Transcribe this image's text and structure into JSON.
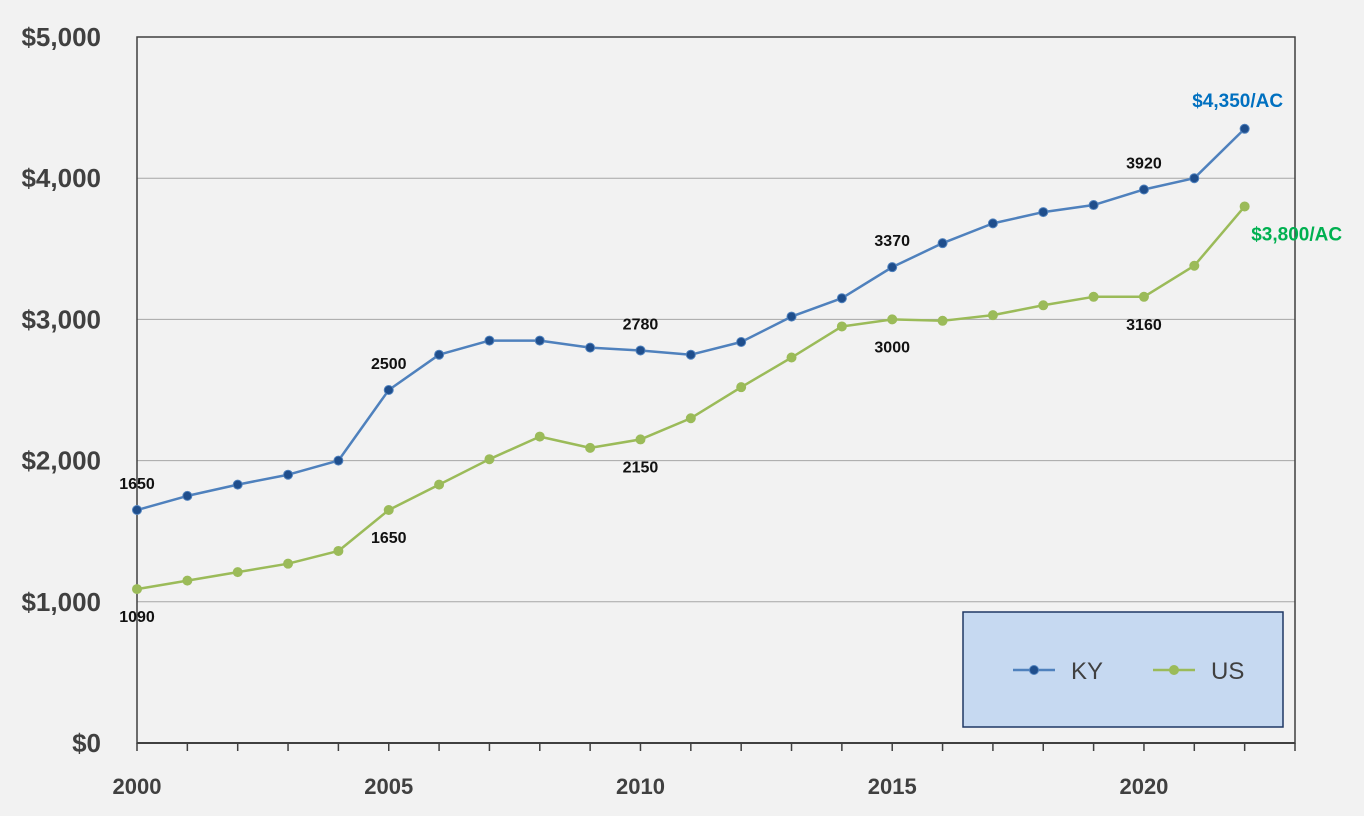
{
  "chart_data": {
    "type": "line",
    "x": [
      2000,
      2001,
      2002,
      2003,
      2004,
      2005,
      2006,
      2007,
      2008,
      2009,
      2010,
      2011,
      2012,
      2013,
      2014,
      2015,
      2016,
      2017,
      2018,
      2019,
      2020,
      2021,
      2022
    ],
    "series": [
      {
        "name": "KY",
        "color": "#4f81bd",
        "marker_color": "#1f4e8c",
        "values": [
          1650,
          1750,
          1830,
          1900,
          2000,
          2500,
          2750,
          2850,
          2850,
          2800,
          2780,
          2750,
          2840,
          3020,
          3150,
          3370,
          3540,
          3680,
          3760,
          3810,
          3920,
          4000,
          4350
        ]
      },
      {
        "name": "US",
        "color": "#9bbb59",
        "marker_color": "#9bbb59",
        "values": [
          1090,
          1150,
          1210,
          1270,
          1360,
          1650,
          1830,
          2010,
          2170,
          2090,
          2150,
          2300,
          2520,
          2730,
          2950,
          3000,
          2990,
          3030,
          3100,
          3160,
          3160,
          3380,
          3800
        ]
      }
    ],
    "ylim": [
      0,
      5000
    ],
    "xlim": [
      2000,
      2023
    ],
    "yticks": [
      "$0",
      "$1,000",
      "$2,000",
      "$3,000",
      "$4,000",
      "$5,000"
    ],
    "xticks": [
      "2000",
      "2005",
      "2010",
      "2015",
      "2020"
    ],
    "xtick_values": [
      2000,
      2005,
      2010,
      2015,
      2020
    ],
    "grid": true,
    "data_labels": [
      {
        "series": "KY",
        "x": 2000,
        "text": "1650",
        "pos": "above"
      },
      {
        "series": "KY",
        "x": 2005,
        "text": "2500",
        "pos": "above"
      },
      {
        "series": "KY",
        "x": 2010,
        "text": "2780",
        "pos": "above"
      },
      {
        "series": "KY",
        "x": 2015,
        "text": "3370",
        "pos": "above"
      },
      {
        "series": "KY",
        "x": 2020,
        "text": "3920",
        "pos": "above"
      },
      {
        "series": "US",
        "x": 2000,
        "text": "1090",
        "pos": "below"
      },
      {
        "series": "US",
        "x": 2005,
        "text": "1650",
        "pos": "below"
      },
      {
        "series": "US",
        "x": 2010,
        "text": "2150",
        "pos": "below"
      },
      {
        "series": "US",
        "x": 2015,
        "text": "3000",
        "pos": "below"
      },
      {
        "series": "US",
        "x": 2020,
        "text": "3160",
        "pos": "below"
      }
    ],
    "end_labels": [
      {
        "series": "KY",
        "text": "$4,350/AC",
        "color": "#0070c0"
      },
      {
        "series": "US",
        "text": "$3,800/AC",
        "color": "#00b050"
      }
    ],
    "legend": {
      "position": "bottom-right",
      "background": "#c6d9f1",
      "border": "#1f3864",
      "entries": [
        "KY",
        "US"
      ]
    }
  }
}
